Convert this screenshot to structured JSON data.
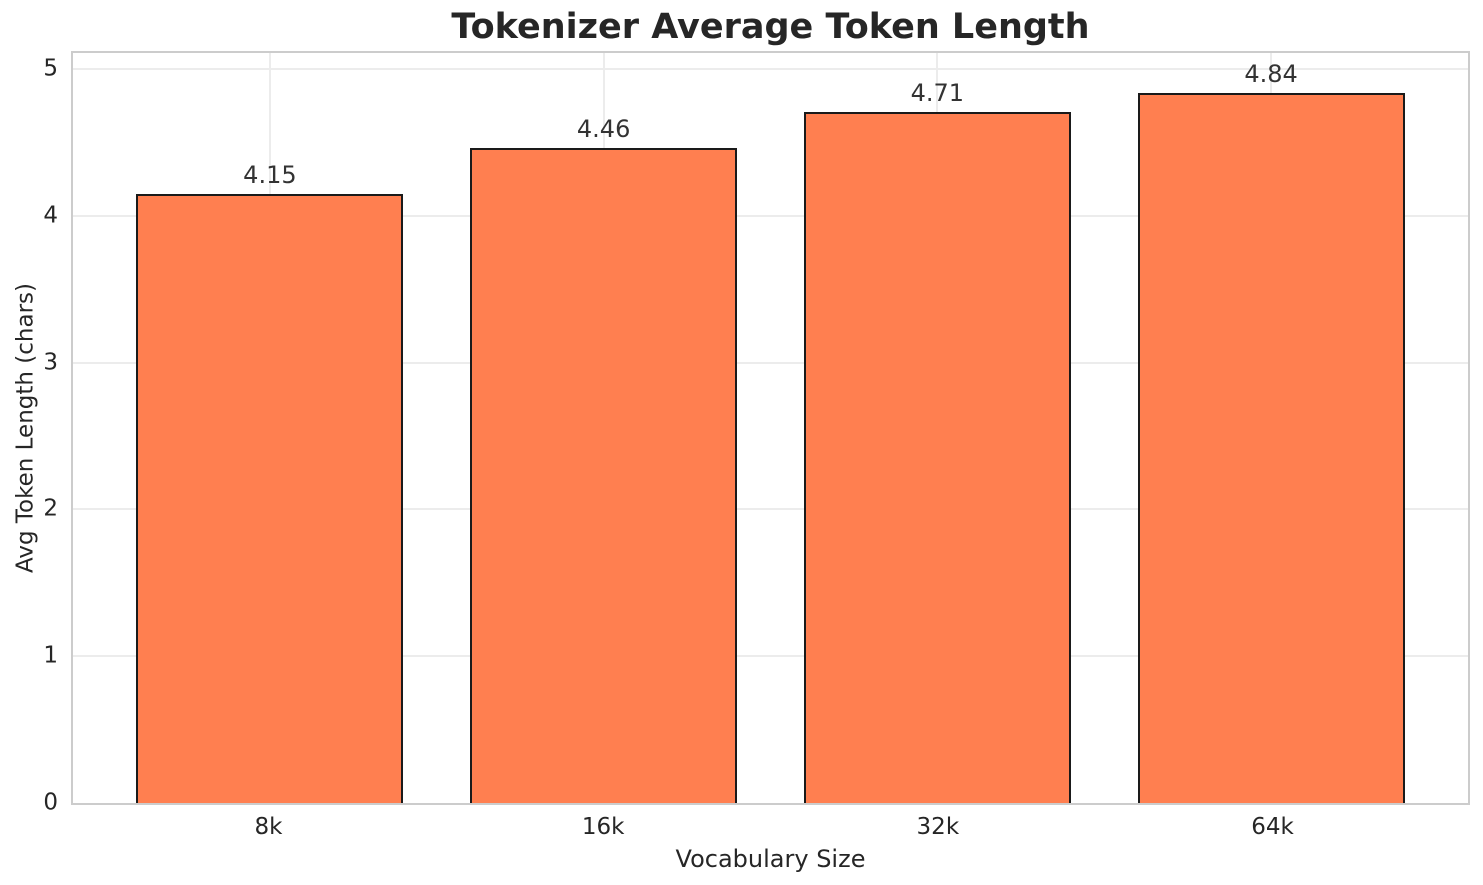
{
  "chart_data": {
    "type": "bar",
    "title": "Tokenizer Average Token Length",
    "xlabel": "Vocabulary Size",
    "ylabel": "Avg Token Length (chars)",
    "categories": [
      "8k",
      "16k",
      "32k",
      "64k"
    ],
    "values": [
      4.15,
      4.46,
      4.71,
      4.84
    ],
    "value_labels": [
      "4.15",
      "4.46",
      "4.71",
      "4.84"
    ],
    "yticks": [
      0,
      1,
      2,
      3,
      4,
      5
    ],
    "ylim": [
      0,
      5.11
    ],
    "grid": true,
    "legend": "none",
    "bar_width_data_units": 0.8,
    "colors": {
      "bar_fill": "#FF7F50",
      "bar_edge": "#1a1a1a",
      "grid_line": "#ececec",
      "spine": "#cccccc",
      "text": "#262626",
      "value_label_text": "#333333",
      "background": "#ffffff"
    }
  }
}
